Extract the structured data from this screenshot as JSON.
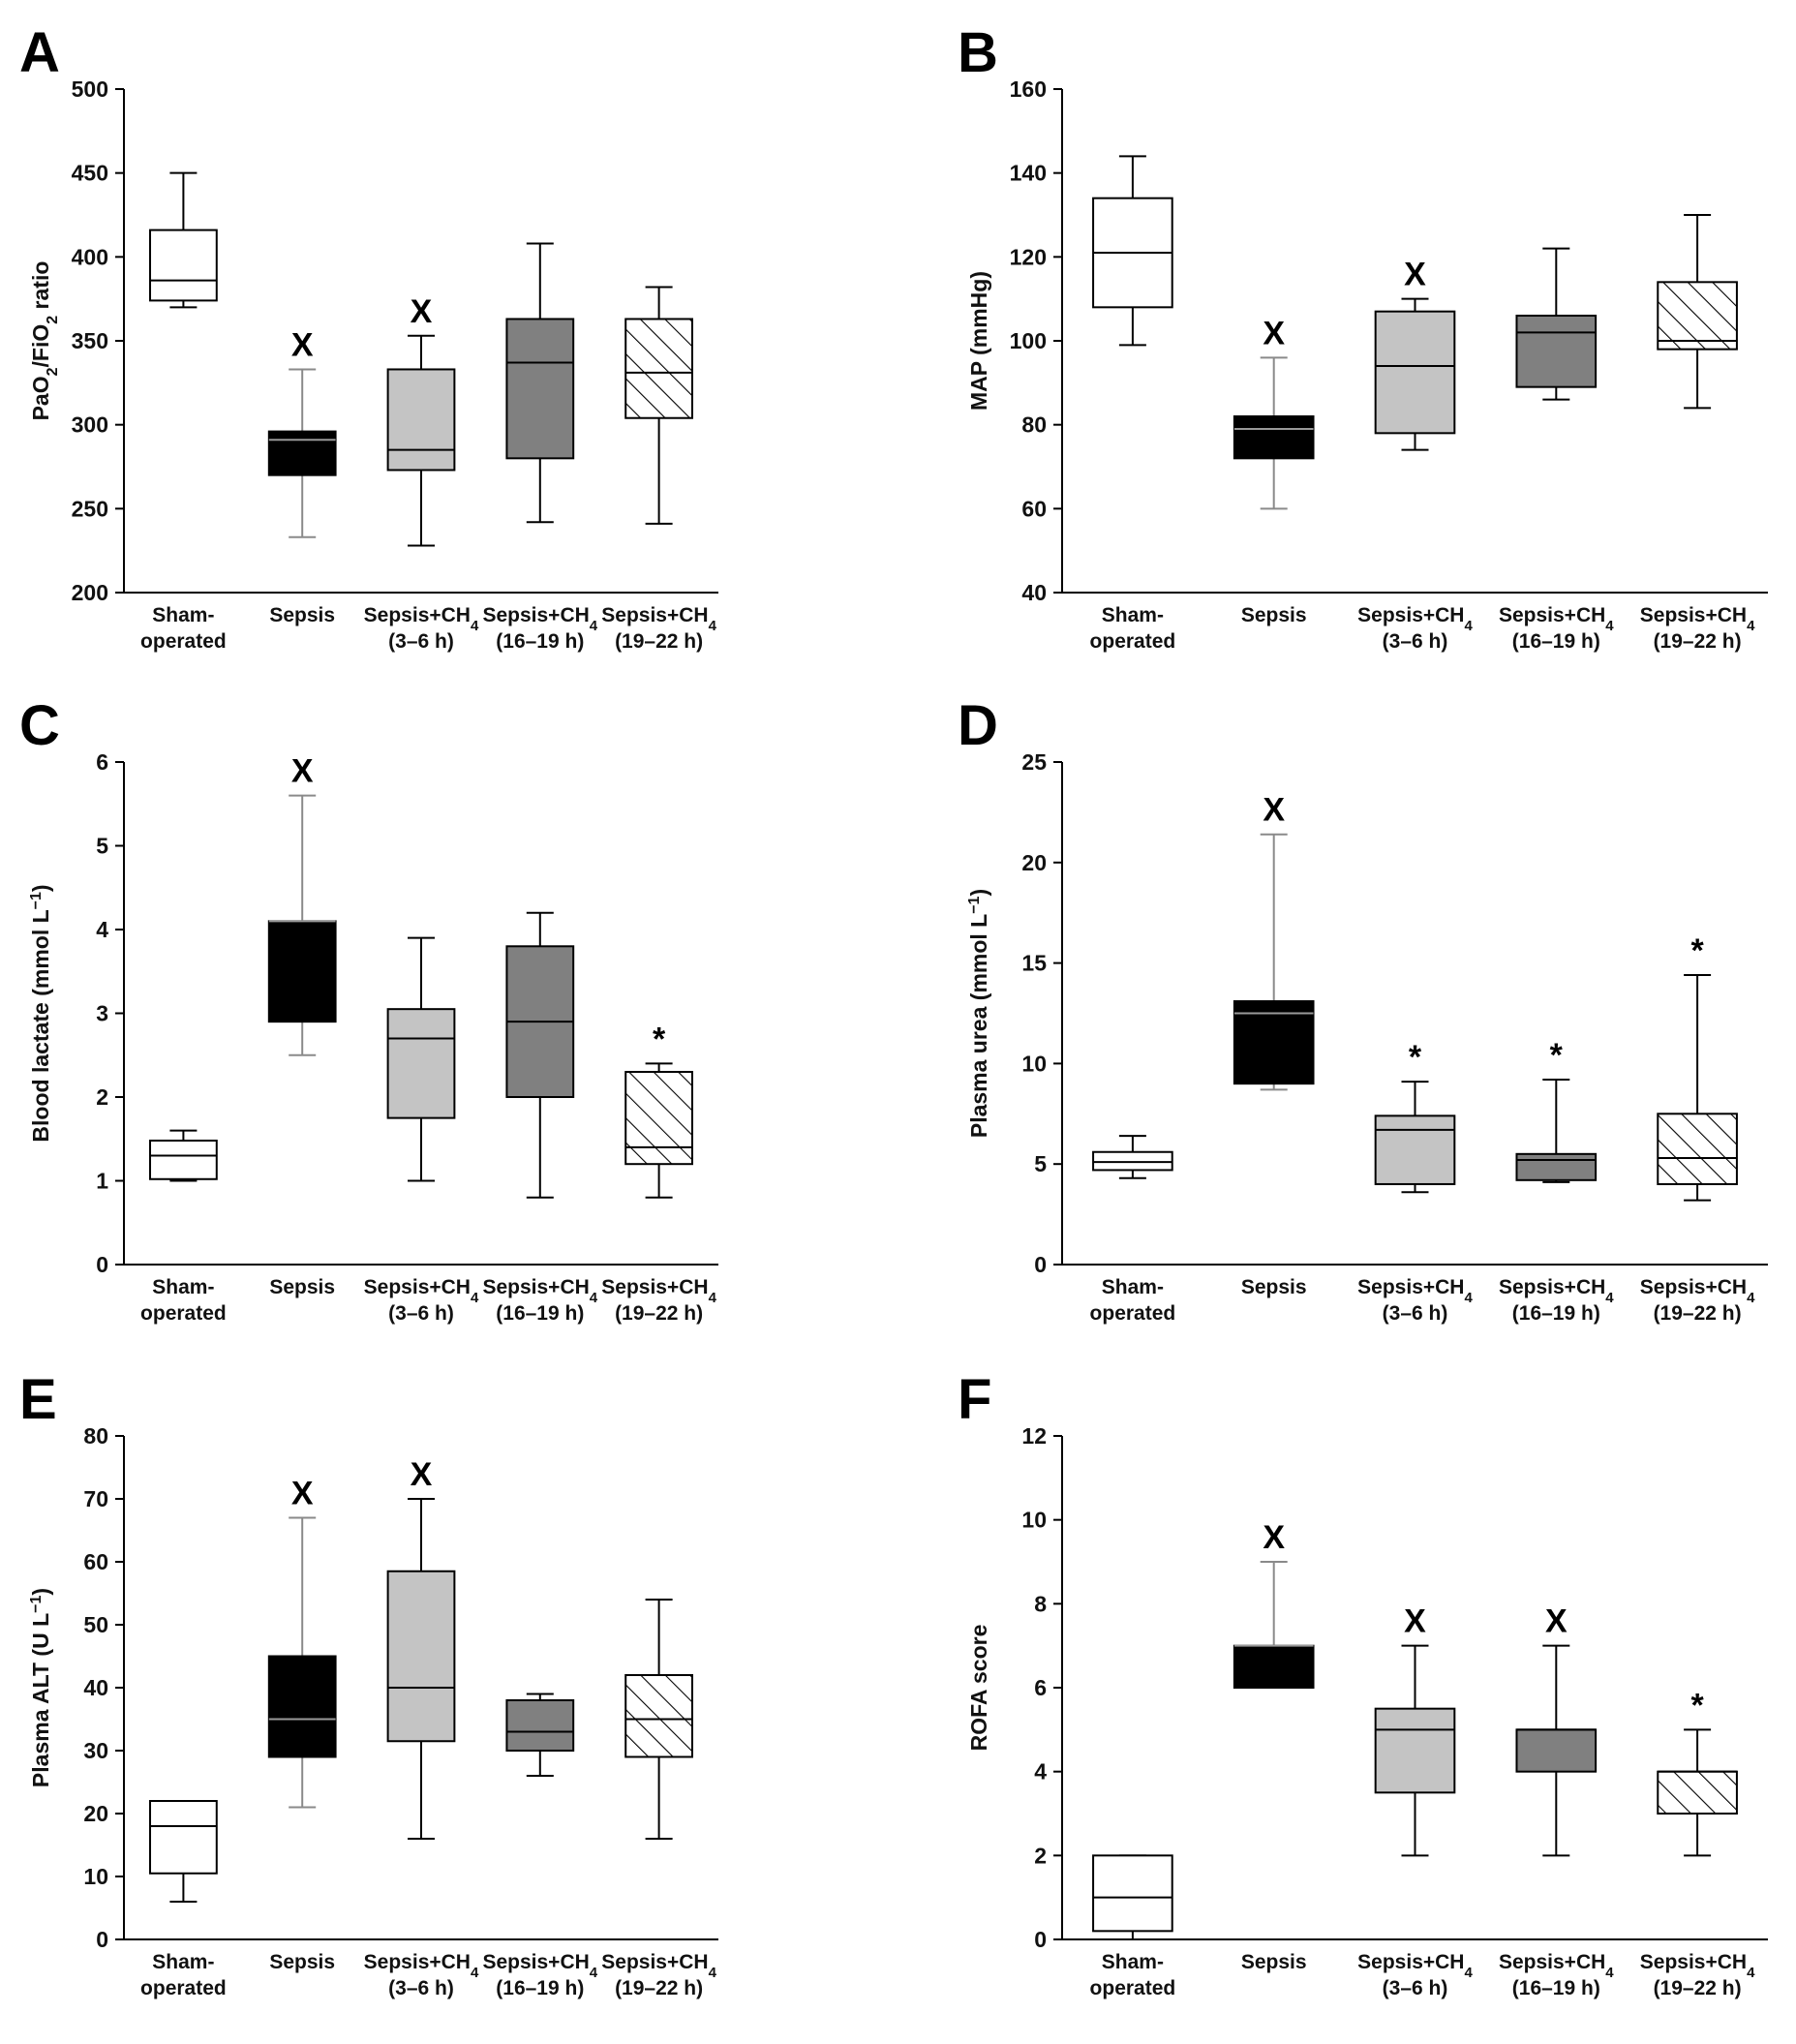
{
  "categories": [
    {
      "line1": "Sham-",
      "line2": "operated"
    },
    {
      "line1": "Sepsis",
      "line2": ""
    },
    {
      "line1": "Sepsis+CH",
      "sub1": "4",
      "line2": "(3–6 h)"
    },
    {
      "line1": "Sepsis+CH",
      "sub1": "4",
      "line2": "(16–19 h)"
    },
    {
      "line1": "Sepsis+CH",
      "sub1": "4",
      "line2": "(19–22 h)"
    }
  ],
  "styles": {
    "fills": [
      "#ffffff",
      "#000000",
      "#c4c4c4",
      "#808080",
      "hatch"
    ],
    "whisker_colors": [
      "#000000",
      "#8a8a8a",
      "#000000",
      "#000000",
      "#000000"
    ]
  },
  "chart_data": [
    {
      "type": "box",
      "panel": "A",
      "ylabel_parts": [
        [
          "PaO",
          ""
        ],
        [
          "2",
          "sub"
        ],
        [
          "/FiO",
          ""
        ],
        [
          "2",
          "sub"
        ],
        [
          " ratio",
          ""
        ]
      ],
      "ylim": [
        200,
        500
      ],
      "yticks": [
        200,
        250,
        300,
        350,
        400,
        450,
        500
      ],
      "boxes": [
        {
          "min": 370,
          "q1": 374,
          "median": 386,
          "q3": 416,
          "max": 450,
          "mark": ""
        },
        {
          "min": 233,
          "q1": 270,
          "median": 291,
          "q3": 296,
          "max": 333,
          "mark": "X"
        },
        {
          "min": 228,
          "q1": 273,
          "median": 285,
          "q3": 333,
          "max": 353,
          "mark": "X"
        },
        {
          "min": 242,
          "q1": 280,
          "median": 337,
          "q3": 363,
          "max": 408,
          "mark": ""
        },
        {
          "min": 241,
          "q1": 304,
          "median": 331,
          "q3": 363,
          "max": 382,
          "mark": ""
        }
      ]
    },
    {
      "type": "box",
      "panel": "B",
      "ylabel_parts": [
        [
          "MAP (mmHg)",
          ""
        ]
      ],
      "ylim": [
        40,
        160
      ],
      "yticks": [
        40,
        60,
        80,
        100,
        120,
        140,
        160
      ],
      "boxes": [
        {
          "min": 99,
          "q1": 108,
          "median": 121,
          "q3": 134,
          "max": 144,
          "mark": ""
        },
        {
          "min": 60,
          "q1": 72,
          "median": 79,
          "q3": 82,
          "max": 96,
          "mark": "X"
        },
        {
          "min": 74,
          "q1": 78,
          "median": 94,
          "q3": 107,
          "max": 110,
          "mark": "X"
        },
        {
          "min": 86,
          "q1": 89,
          "median": 102,
          "q3": 106,
          "max": 122,
          "mark": ""
        },
        {
          "min": 84,
          "q1": 98,
          "median": 100,
          "q3": 114,
          "max": 130,
          "mark": ""
        }
      ]
    },
    {
      "type": "box",
      "panel": "C",
      "ylabel_parts": [
        [
          "Blood lactate (mmol L",
          ""
        ],
        [
          "−1",
          "sup"
        ],
        [
          ")",
          ""
        ]
      ],
      "ylim": [
        0,
        6
      ],
      "yticks": [
        0,
        1,
        2,
        3,
        4,
        5,
        6
      ],
      "boxes": [
        {
          "min": 1.0,
          "q1": 1.02,
          "median": 1.3,
          "q3": 1.48,
          "max": 1.6,
          "mark": ""
        },
        {
          "min": 2.5,
          "q1": 2.9,
          "median": 4.1,
          "q3": 4.1,
          "max": 5.6,
          "mark": "X"
        },
        {
          "min": 1.0,
          "q1": 1.75,
          "median": 2.7,
          "q3": 3.05,
          "max": 3.9,
          "mark": ""
        },
        {
          "min": 0.8,
          "q1": 2.0,
          "median": 2.9,
          "q3": 3.8,
          "max": 4.2,
          "mark": ""
        },
        {
          "min": 0.8,
          "q1": 1.2,
          "median": 1.4,
          "q3": 2.3,
          "max": 2.4,
          "mark": "*"
        }
      ]
    },
    {
      "type": "box",
      "panel": "D",
      "ylabel_parts": [
        [
          "Plasma urea (mmol L",
          ""
        ],
        [
          "−1",
          "sup"
        ],
        [
          ")",
          ""
        ]
      ],
      "ylim": [
        0,
        25
      ],
      "yticks": [
        0,
        5,
        10,
        15,
        20,
        25
      ],
      "boxes": [
        {
          "min": 4.3,
          "q1": 4.7,
          "median": 5.1,
          "q3": 5.6,
          "max": 6.4,
          "mark": ""
        },
        {
          "min": 8.7,
          "q1": 9.0,
          "median": 12.5,
          "q3": 13.1,
          "max": 21.4,
          "mark": "X"
        },
        {
          "min": 3.6,
          "q1": 4.0,
          "median": 6.7,
          "q3": 7.4,
          "max": 9.1,
          "mark": "*"
        },
        {
          "min": 4.1,
          "q1": 4.2,
          "median": 5.2,
          "q3": 5.5,
          "max": 9.2,
          "mark": "*"
        },
        {
          "min": 3.2,
          "q1": 4.0,
          "median": 5.3,
          "q3": 7.5,
          "max": 14.4,
          "mark": "*"
        }
      ]
    },
    {
      "type": "box",
      "panel": "E",
      "ylabel_parts": [
        [
          "Plasma ALT (U L",
          ""
        ],
        [
          "−1",
          "sup"
        ],
        [
          ")",
          ""
        ]
      ],
      "ylim": [
        0,
        80
      ],
      "yticks": [
        0,
        10,
        20,
        30,
        40,
        50,
        60,
        70,
        80
      ],
      "boxes": [
        {
          "min": 6,
          "q1": 10.5,
          "median": 18,
          "q3": 22,
          "max": 22,
          "mark": ""
        },
        {
          "min": 21,
          "q1": 29,
          "median": 35,
          "q3": 45,
          "max": 67,
          "mark": "X"
        },
        {
          "min": 16,
          "q1": 31.5,
          "median": 40,
          "q3": 58.5,
          "max": 70,
          "mark": "X"
        },
        {
          "min": 26,
          "q1": 30,
          "median": 33,
          "q3": 38,
          "max": 39,
          "mark": ""
        },
        {
          "min": 16,
          "q1": 29,
          "median": 35,
          "q3": 42,
          "max": 54,
          "mark": ""
        }
      ]
    },
    {
      "type": "box",
      "panel": "F",
      "ylabel_parts": [
        [
          "ROFA score",
          ""
        ]
      ],
      "ylim": [
        0,
        12
      ],
      "yticks": [
        0,
        2,
        4,
        6,
        8,
        10,
        12
      ],
      "boxes": [
        {
          "min": 0,
          "q1": 0.2,
          "median": 1,
          "q3": 2,
          "max": 2,
          "mark": ""
        },
        {
          "min": 6,
          "q1": 6,
          "median": 7,
          "q3": 7,
          "max": 9,
          "mark": "X"
        },
        {
          "min": 2,
          "q1": 3.5,
          "median": 5,
          "q3": 5.5,
          "max": 7,
          "mark": "X"
        },
        {
          "min": 2,
          "q1": 4,
          "median": 5,
          "q3": 5,
          "max": 7,
          "mark": "X"
        },
        {
          "min": 2,
          "q1": 3,
          "median": 4,
          "q3": 4,
          "max": 5,
          "mark": "*"
        }
      ]
    }
  ]
}
